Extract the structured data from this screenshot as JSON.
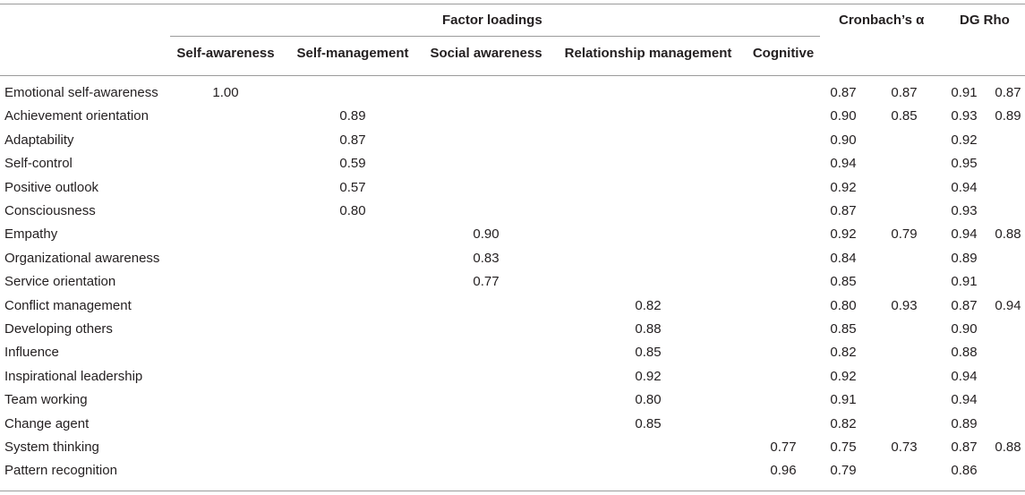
{
  "headers": {
    "factor_loadings": "Factor loadings",
    "cronbach": "Cronbach’s α",
    "dg_rho": "DG Rho",
    "columns": [
      "Self-awareness",
      "Self-management",
      "Social awareness",
      "Relationship management",
      "Cognitive"
    ]
  },
  "rows": [
    {
      "label": "Emotional self-awareness",
      "loading": "1.00",
      "factor_index": 0,
      "alpha_item": "0.87",
      "alpha_factor": "0.87",
      "rho_item": "0.91",
      "rho_factor": "0.87"
    },
    {
      "label": "Achievement orientation",
      "loading": "0.89",
      "factor_index": 1,
      "alpha_item": "0.90",
      "alpha_factor": "0.85",
      "rho_item": "0.93",
      "rho_factor": "0.89"
    },
    {
      "label": "Adaptability",
      "loading": "0.87",
      "factor_index": 1,
      "alpha_item": "0.90",
      "alpha_factor": "",
      "rho_item": "0.92",
      "rho_factor": ""
    },
    {
      "label": "Self-control",
      "loading": "0.59",
      "factor_index": 1,
      "alpha_item": "0.94",
      "alpha_factor": "",
      "rho_item": "0.95",
      "rho_factor": ""
    },
    {
      "label": "Positive outlook",
      "loading": "0.57",
      "factor_index": 1,
      "alpha_item": "0.92",
      "alpha_factor": "",
      "rho_item": "0.94",
      "rho_factor": ""
    },
    {
      "label": "Consciousness",
      "loading": "0.80",
      "factor_index": 1,
      "alpha_item": "0.87",
      "alpha_factor": "",
      "rho_item": "0.93",
      "rho_factor": ""
    },
    {
      "label": "Empathy",
      "loading": "0.90",
      "factor_index": 2,
      "alpha_item": "0.92",
      "alpha_factor": "0.79",
      "rho_item": "0.94",
      "rho_factor": "0.88"
    },
    {
      "label": "Organizational awareness",
      "loading": "0.83",
      "factor_index": 2,
      "alpha_item": "0.84",
      "alpha_factor": "",
      "rho_item": "0.89",
      "rho_factor": ""
    },
    {
      "label": "Service orientation",
      "loading": "0.77",
      "factor_index": 2,
      "alpha_item": "0.85",
      "alpha_factor": "",
      "rho_item": "0.91",
      "rho_factor": ""
    },
    {
      "label": "Conflict management",
      "loading": "0.82",
      "factor_index": 3,
      "alpha_item": "0.80",
      "alpha_factor": "0.93",
      "rho_item": "0.87",
      "rho_factor": "0.94"
    },
    {
      "label": "Developing others",
      "loading": "0.88",
      "factor_index": 3,
      "alpha_item": "0.85",
      "alpha_factor": "",
      "rho_item": "0.90",
      "rho_factor": ""
    },
    {
      "label": "Influence",
      "loading": "0.85",
      "factor_index": 3,
      "alpha_item": "0.82",
      "alpha_factor": "",
      "rho_item": "0.88",
      "rho_factor": ""
    },
    {
      "label": "Inspirational leadership",
      "loading": "0.92",
      "factor_index": 3,
      "alpha_item": "0.92",
      "alpha_factor": "",
      "rho_item": "0.94",
      "rho_factor": ""
    },
    {
      "label": "Team working",
      "loading": "0.80",
      "factor_index": 3,
      "alpha_item": "0.91",
      "alpha_factor": "",
      "rho_item": "0.94",
      "rho_factor": ""
    },
    {
      "label": "Change agent",
      "loading": "0.85",
      "factor_index": 3,
      "alpha_item": "0.82",
      "alpha_factor": "",
      "rho_item": "0.89",
      "rho_factor": ""
    },
    {
      "label": "System thinking",
      "loading": "0.77",
      "factor_index": 4,
      "alpha_item": "0.75",
      "alpha_factor": "0.73",
      "rho_item": "0.87",
      "rho_factor": "0.88"
    },
    {
      "label": "Pattern recognition",
      "loading": "0.96",
      "factor_index": 4,
      "alpha_item": "0.79",
      "alpha_factor": "",
      "rho_item": "0.86",
      "rho_factor": ""
    }
  ]
}
